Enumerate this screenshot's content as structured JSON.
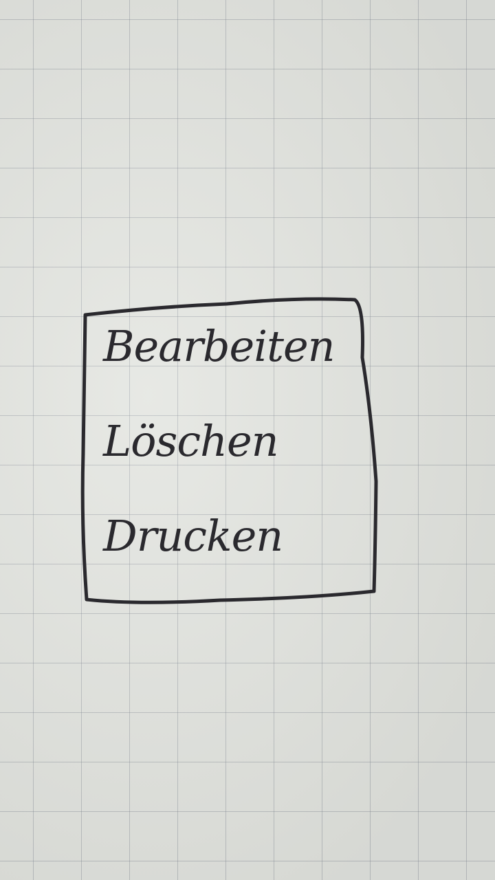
{
  "menu": {
    "items": [
      {
        "label": "Bearbeiten"
      },
      {
        "label": "Löschen"
      },
      {
        "label": "Drucken"
      }
    ]
  },
  "colors": {
    "paper": "#e2e4df",
    "grid": "#78808c",
    "ink": "#2a292e"
  }
}
